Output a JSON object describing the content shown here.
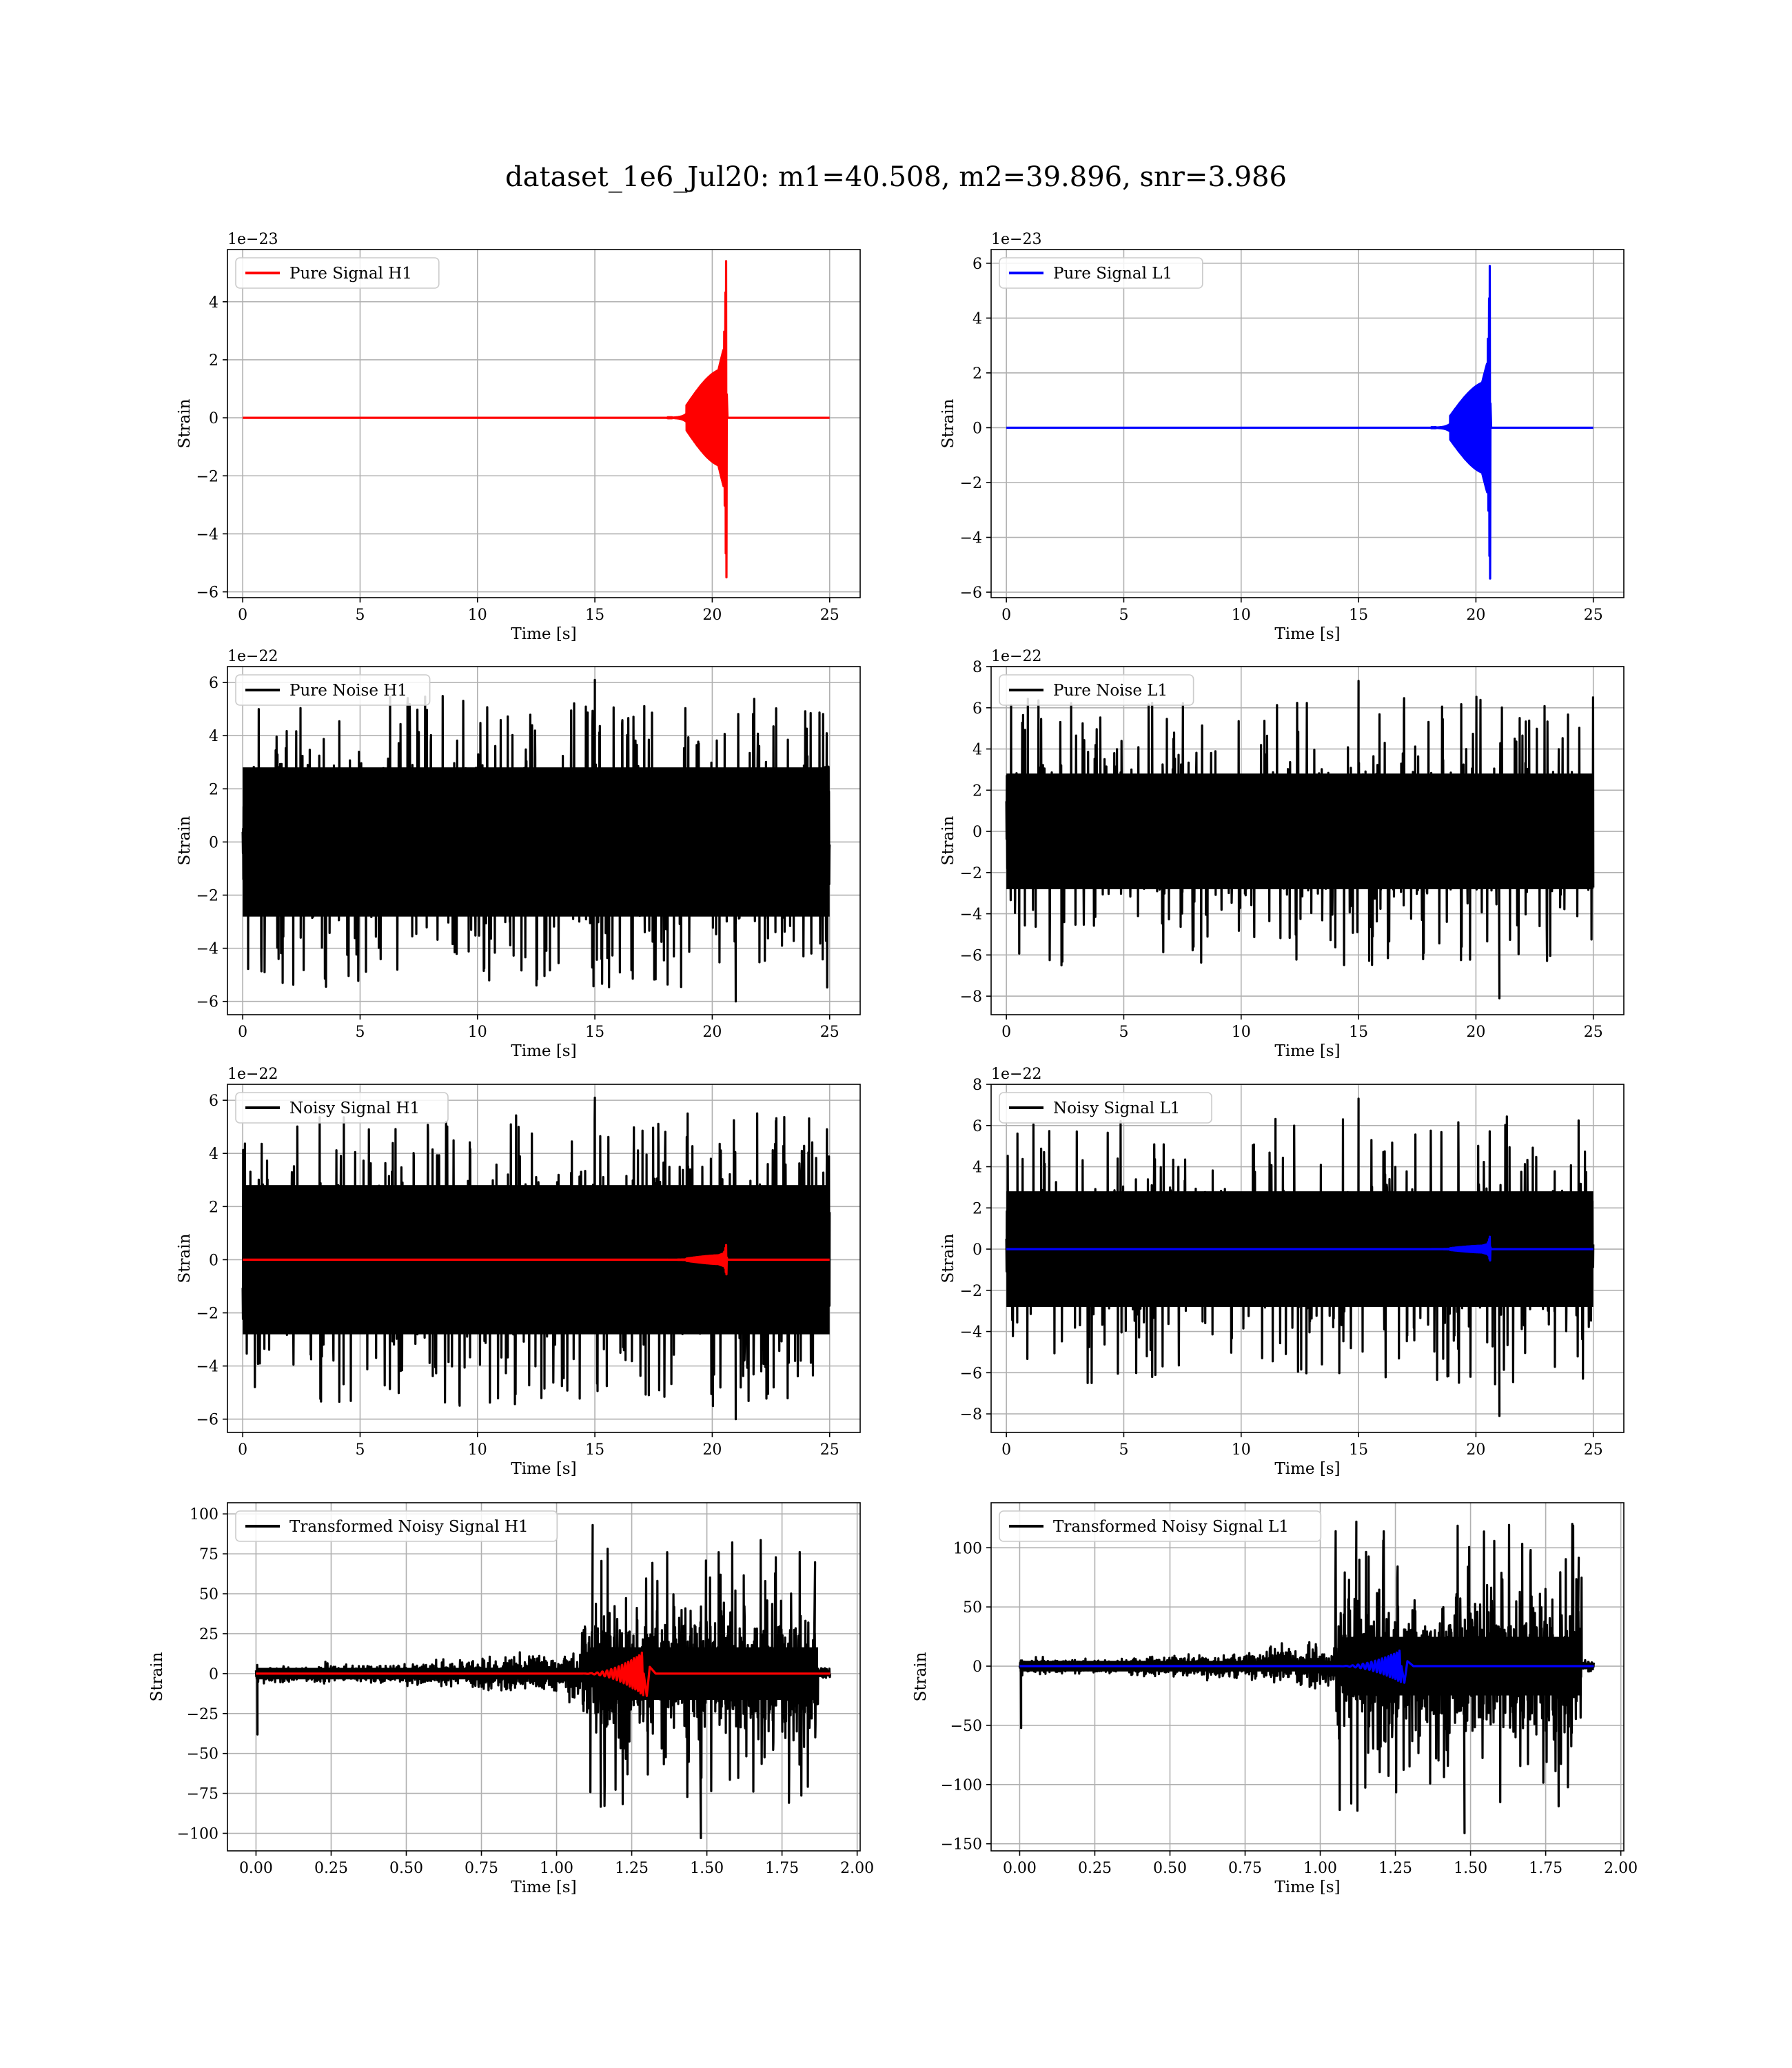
{
  "figure": {
    "title": "dataset_1e6_Jul20: m1=40.508, m2=39.896, snr=3.986"
  },
  "chart_data": [
    {
      "type": "line",
      "legend": [
        "Pure Signal H1"
      ],
      "legend_loc": "upper-left",
      "grid": true,
      "xlabel": "Time [s]",
      "ylabel": "Strain",
      "offset_text": "1e−23",
      "xlim": [
        -0.65,
        26.3
      ],
      "ylim": [
        -6.2,
        5.8
      ],
      "xticks": [
        0,
        5,
        10,
        15,
        20,
        25
      ],
      "xticklabels": [
        "0",
        "5",
        "10",
        "15",
        "20",
        "25"
      ],
      "yticks": [
        -6,
        -4,
        -2,
        0,
        2,
        4
      ],
      "yticklabels": [
        "−6",
        "−4",
        "−2",
        "0",
        "2",
        "4"
      ],
      "series": [
        {
          "name": "Pure Signal H1",
          "color": "#ff0000",
          "kind": "chirp",
          "x_range": [
            0,
            25
          ],
          "t_merger": 20.6,
          "peak_pos": 5.4,
          "peak_neg": -5.5,
          "onset": 18.9,
          "plateau": 1.7
        }
      ]
    },
    {
      "type": "line",
      "legend": [
        "Pure Signal L1"
      ],
      "legend_loc": "upper-left",
      "grid": true,
      "xlabel": "Time [s]",
      "ylabel": "Strain",
      "offset_text": "1e−23",
      "xlim": [
        -0.65,
        26.3
      ],
      "ylim": [
        -6.2,
        6.5
      ],
      "xticks": [
        0,
        5,
        10,
        15,
        20,
        25
      ],
      "xticklabels": [
        "0",
        "5",
        "10",
        "15",
        "20",
        "25"
      ],
      "yticks": [
        -6,
        -4,
        -2,
        0,
        2,
        4,
        6
      ],
      "yticklabels": [
        "−6",
        "−4",
        "−2",
        "0",
        "2",
        "4",
        "6"
      ],
      "series": [
        {
          "name": "Pure Signal L1",
          "color": "#0000ff",
          "kind": "chirp",
          "x_range": [
            0,
            25
          ],
          "t_merger": 20.6,
          "peak_pos": 5.9,
          "peak_neg": -5.5,
          "onset": 18.9,
          "plateau": 1.7
        }
      ]
    },
    {
      "type": "line",
      "legend": [
        "Pure Noise H1"
      ],
      "legend_loc": "upper-left",
      "grid": true,
      "xlabel": "Time [s]",
      "ylabel": "Strain",
      "offset_text": "1e−22",
      "xlim": [
        -0.65,
        26.3
      ],
      "ylim": [
        -6.5,
        6.6
      ],
      "xticks": [
        0,
        5,
        10,
        15,
        20,
        25
      ],
      "xticklabels": [
        "0",
        "5",
        "10",
        "15",
        "20",
        "25"
      ],
      "yticks": [
        -6,
        -4,
        -2,
        0,
        2,
        4,
        6
      ],
      "yticklabels": [
        "−6",
        "−4",
        "−2",
        "0",
        "2",
        "4",
        "6"
      ],
      "series": [
        {
          "name": "Pure Noise H1",
          "color": "#000000",
          "kind": "noise",
          "x_range": [
            0,
            25
          ],
          "band": 3.6,
          "max": 6.1,
          "min": -6.0
        }
      ]
    },
    {
      "type": "line",
      "legend": [
        "Pure Noise L1"
      ],
      "legend_loc": "upper-left",
      "grid": true,
      "xlabel": "Time [s]",
      "ylabel": "Strain",
      "offset_text": "1e−22",
      "xlim": [
        -0.65,
        26.3
      ],
      "ylim": [
        -8.9,
        8.0
      ],
      "xticks": [
        0,
        5,
        10,
        15,
        20,
        25
      ],
      "xticklabels": [
        "0",
        "5",
        "10",
        "15",
        "20",
        "25"
      ],
      "yticks": [
        -8,
        -6,
        -4,
        -2,
        0,
        2,
        4,
        6,
        8
      ],
      "yticklabels": [
        "−8",
        "−6",
        "−4",
        "−2",
        "0",
        "2",
        "4",
        "6",
        "8"
      ],
      "series": [
        {
          "name": "Pure Noise L1",
          "color": "#000000",
          "kind": "noise",
          "x_range": [
            0,
            25
          ],
          "band": 3.6,
          "max": 7.3,
          "min": -8.1
        }
      ]
    },
    {
      "type": "line",
      "legend": [
        "Noisy Signal H1"
      ],
      "legend_loc": "upper-left",
      "grid": true,
      "xlabel": "Time [s]",
      "ylabel": "Strain",
      "offset_text": "1e−22",
      "xlim": [
        -0.65,
        26.3
      ],
      "ylim": [
        -6.5,
        6.6
      ],
      "xticks": [
        0,
        5,
        10,
        15,
        20,
        25
      ],
      "xticklabels": [
        "0",
        "5",
        "10",
        "15",
        "20",
        "25"
      ],
      "yticks": [
        -6,
        -4,
        -2,
        0,
        2,
        4,
        6
      ],
      "yticklabels": [
        "−6",
        "−4",
        "−2",
        "0",
        "2",
        "4",
        "6"
      ],
      "series": [
        {
          "name": "Noisy Signal H1",
          "color": "#000000",
          "kind": "noise",
          "x_range": [
            0,
            25
          ],
          "band": 3.6,
          "max": 6.1,
          "min": -6.0
        },
        {
          "name": "Pure Signal H1",
          "color": "#ff0000",
          "kind": "chirp",
          "x_range": [
            0,
            25
          ],
          "t_merger": 20.6,
          "peak_pos": 0.55,
          "peak_neg": -0.55,
          "onset": 18.9,
          "plateau": 0.17
        }
      ]
    },
    {
      "type": "line",
      "legend": [
        "Noisy Signal L1"
      ],
      "legend_loc": "upper-left",
      "grid": true,
      "xlabel": "Time [s]",
      "ylabel": "Strain",
      "offset_text": "1e−22",
      "xlim": [
        -0.65,
        26.3
      ],
      "ylim": [
        -8.9,
        8.0
      ],
      "xticks": [
        0,
        5,
        10,
        15,
        20,
        25
      ],
      "xticklabels": [
        "0",
        "5",
        "10",
        "15",
        "20",
        "25"
      ],
      "yticks": [
        -8,
        -6,
        -4,
        -2,
        0,
        2,
        4,
        6,
        8
      ],
      "yticklabels": [
        "−8",
        "−6",
        "−4",
        "−2",
        "0",
        "2",
        "4",
        "6",
        "8"
      ],
      "series": [
        {
          "name": "Noisy Signal L1",
          "color": "#000000",
          "kind": "noise",
          "x_range": [
            0,
            25
          ],
          "band": 3.6,
          "max": 7.3,
          "min": -8.1
        },
        {
          "name": "Pure Signal L1",
          "color": "#0000ff",
          "kind": "chirp",
          "x_range": [
            0,
            25
          ],
          "t_merger": 20.6,
          "peak_pos": 0.6,
          "peak_neg": -0.55,
          "onset": 18.9,
          "plateau": 0.17
        }
      ]
    },
    {
      "type": "line",
      "legend": [
        "Transformed Noisy Signal H1"
      ],
      "legend_loc": "upper-left",
      "grid": true,
      "xlabel": "Time [s]",
      "ylabel": "Strain",
      "offset_text": "",
      "xlim": [
        -0.095,
        2.01
      ],
      "ylim": [
        -111,
        107
      ],
      "xticks": [
        0,
        0.25,
        0.5,
        0.75,
        1.0,
        1.25,
        1.5,
        1.75,
        2.0
      ],
      "xticklabels": [
        "0.00",
        "0.25",
        "0.50",
        "0.75",
        "1.00",
        "1.25",
        "1.50",
        "1.75",
        "2.00"
      ],
      "yticks": [
        -100,
        -75,
        -50,
        -25,
        0,
        25,
        50,
        75,
        100
      ],
      "yticklabels": [
        "−100",
        "−75",
        "−50",
        "−25",
        "0",
        "25",
        "50",
        "75",
        "100"
      ],
      "series": [
        {
          "name": "Transformed Noisy Signal H1",
          "color": "#000000",
          "kind": "tnoise",
          "x_range": [
            0,
            1.91
          ],
          "cut": 1.87,
          "ramp_start": 1.08,
          "band_low": 4,
          "band_high": 30,
          "max": 93,
          "min": -103
        },
        {
          "name": "Signal H1",
          "color": "#ff0000",
          "kind": "tchirp",
          "x_range": [
            0,
            1.91
          ],
          "t_peak": 1.29,
          "onset": 1.08,
          "peak": 14
        }
      ]
    },
    {
      "type": "line",
      "legend": [
        "Transformed Noisy Signal L1"
      ],
      "legend_loc": "upper-left",
      "grid": true,
      "xlabel": "Time [s]",
      "ylabel": "Strain",
      "offset_text": "",
      "xlim": [
        -0.095,
        2.01
      ],
      "ylim": [
        -156,
        138
      ],
      "xticks": [
        0,
        0.25,
        0.5,
        0.75,
        1.0,
        1.25,
        1.5,
        1.75,
        2.0
      ],
      "xticklabels": [
        "0.00",
        "0.25",
        "0.50",
        "0.75",
        "1.00",
        "1.25",
        "1.50",
        "1.75",
        "2.00"
      ],
      "yticks": [
        -150,
        -100,
        -50,
        0,
        50,
        100
      ],
      "yticklabels": [
        "−150",
        "−100",
        "−50",
        "0",
        "50",
        "100"
      ],
      "series": [
        {
          "name": "Transformed Noisy Signal L1",
          "color": "#000000",
          "kind": "tnoise",
          "x_range": [
            0,
            1.91
          ],
          "cut": 1.87,
          "ramp_start": 1.05,
          "band_low": 5,
          "band_high": 45,
          "max": 122,
          "min": -141
        },
        {
          "name": "Signal L1",
          "color": "#0000ff",
          "kind": "tchirp",
          "x_range": [
            0,
            1.91
          ],
          "t_peak": 1.27,
          "onset": 1.05,
          "peak": 14
        }
      ]
    }
  ]
}
